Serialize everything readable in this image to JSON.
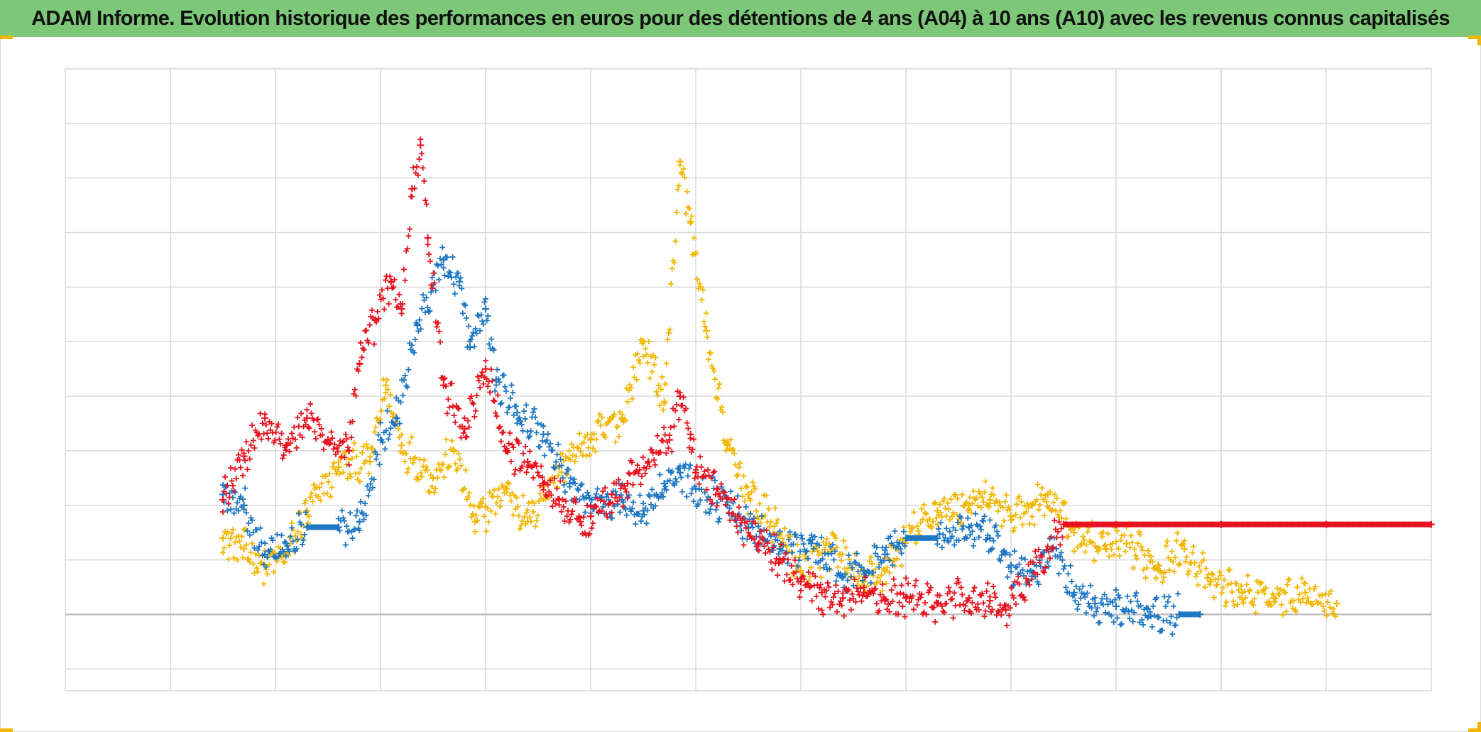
{
  "title": "ADAM Informe. Evolution historique des performances en euros pour des détentions de 4 ans (A04) à 10 ans (A10) avec les revenus connus capitalisés",
  "colors": {
    "title_bg": "#7dc878",
    "corner_marks": "#f2b705",
    "grid": "#d9d9d9",
    "zero_line": "#bfbfbf"
  },
  "chart_data": {
    "type": "scatter",
    "marker": "plus",
    "title": "ADAM Informe. Evolution historique des performances en euros pour des détentions de 4 ans (A04) à 10 ans (A10) avec les revenus connus capitalisés",
    "xlabel": "",
    "ylabel": "",
    "tick_labels_visible": false,
    "grid": true,
    "gridlines": {
      "x_count": 13,
      "y_count": 11
    },
    "xlim": [
      0,
      13
    ],
    "ylim": [
      -1.4,
      10
    ],
    "zero_line_y": 0,
    "legend": "none",
    "series": [
      {
        "color": "#f2b705",
        "points": [
          [
            1.5,
            1.4
          ],
          [
            1.7,
            1.2
          ],
          [
            1.9,
            0.9
          ],
          [
            2.1,
            1.1
          ],
          [
            2.3,
            1.9
          ],
          [
            2.6,
            2.7
          ],
          [
            2.9,
            2.8
          ],
          [
            3.05,
            4.2
          ],
          [
            3.2,
            3.1
          ],
          [
            3.5,
            2.5
          ],
          [
            3.7,
            3.0
          ],
          [
            3.9,
            1.7
          ],
          [
            4.2,
            2.3
          ],
          [
            4.4,
            1.7
          ],
          [
            4.7,
            2.7
          ],
          [
            5.0,
            3.2
          ],
          [
            5.3,
            3.6
          ],
          [
            5.5,
            5.0
          ],
          [
            5.7,
            3.9
          ],
          [
            5.85,
            8.3
          ],
          [
            5.95,
            7.2
          ],
          [
            6.1,
            5.2
          ],
          [
            6.3,
            3.1
          ],
          [
            6.5,
            2.2
          ],
          [
            6.8,
            1.5
          ],
          [
            7.0,
            0.8
          ],
          [
            7.3,
            1.2
          ],
          [
            7.6,
            0.6
          ],
          [
            7.8,
            0.8
          ],
          [
            8.0,
            1.4
          ],
          [
            8.3,
            1.9
          ],
          [
            8.6,
            2.0
          ],
          [
            8.8,
            2.1
          ],
          [
            9.0,
            1.8
          ],
          [
            9.2,
            2.0
          ],
          [
            9.35,
            2.2
          ],
          [
            9.6,
            1.5
          ],
          [
            9.9,
            1.2
          ],
          [
            10.1,
            1.3
          ],
          [
            10.4,
            0.9
          ],
          [
            10.65,
            1.2
          ],
          [
            10.9,
            0.6
          ],
          [
            11.2,
            0.4
          ],
          [
            11.5,
            0.3
          ],
          [
            11.8,
            0.4
          ],
          [
            12.1,
            0.2
          ]
        ]
      },
      {
        "color": "#1f77c4",
        "points": [
          [
            1.5,
            2.2
          ],
          [
            1.7,
            2.0
          ],
          [
            1.9,
            1.1
          ],
          [
            2.1,
            1.3
          ],
          [
            2.3,
            1.6
          ],
          [
            2.6,
            1.6
          ],
          [
            2.8,
            1.7
          ],
          [
            3.0,
            3.2
          ],
          [
            3.15,
            3.6
          ],
          [
            3.35,
            5.3
          ],
          [
            3.6,
            6.5
          ],
          [
            3.75,
            6.1
          ],
          [
            3.85,
            4.9
          ],
          [
            4.0,
            5.6
          ],
          [
            4.1,
            4.3
          ],
          [
            4.3,
            3.7
          ],
          [
            4.55,
            3.3
          ],
          [
            4.8,
            2.4
          ],
          [
            5.0,
            2.0
          ],
          [
            5.3,
            2.1
          ],
          [
            5.5,
            1.9
          ],
          [
            5.7,
            2.4
          ],
          [
            5.85,
            2.6
          ],
          [
            6.0,
            2.3
          ],
          [
            6.3,
            2.0
          ],
          [
            6.5,
            1.6
          ],
          [
            6.8,
            1.2
          ],
          [
            7.1,
            1.3
          ],
          [
            7.4,
            0.7
          ],
          [
            7.6,
            0.8
          ],
          [
            7.8,
            1.1
          ],
          [
            8.0,
            1.4
          ],
          [
            8.3,
            1.4
          ],
          [
            8.6,
            1.6
          ],
          [
            8.8,
            1.4
          ],
          [
            9.0,
            0.9
          ],
          [
            9.2,
            0.7
          ],
          [
            9.4,
            1.2
          ],
          [
            9.6,
            0.4
          ],
          [
            9.8,
            0.2
          ],
          [
            10.0,
            0.15
          ],
          [
            10.3,
            0.1
          ],
          [
            10.6,
            0.0
          ],
          [
            10.8,
            0.0
          ]
        ]
      },
      {
        "color": "#e8131f",
        "points": [
          [
            1.5,
            2.1
          ],
          [
            1.7,
            2.9
          ],
          [
            1.9,
            3.6
          ],
          [
            2.1,
            3.1
          ],
          [
            2.3,
            3.6
          ],
          [
            2.5,
            3.2
          ],
          [
            2.7,
            3.0
          ],
          [
            2.8,
            4.6
          ],
          [
            2.95,
            5.4
          ],
          [
            3.1,
            6.1
          ],
          [
            3.2,
            5.6
          ],
          [
            3.3,
            7.8
          ],
          [
            3.38,
            8.6
          ],
          [
            3.45,
            6.9
          ],
          [
            3.6,
            4.2
          ],
          [
            3.8,
            3.4
          ],
          [
            4.0,
            4.5
          ],
          [
            4.2,
            3.0
          ],
          [
            4.4,
            2.8
          ],
          [
            4.55,
            2.4
          ],
          [
            4.7,
            2.1
          ],
          [
            4.9,
            1.7
          ],
          [
            5.0,
            1.8
          ],
          [
            5.2,
            2.2
          ],
          [
            5.35,
            2.4
          ],
          [
            5.55,
            2.8
          ],
          [
            5.75,
            3.2
          ],
          [
            5.85,
            4.0
          ],
          [
            5.95,
            3.3
          ],
          [
            6.0,
            2.6
          ],
          [
            6.2,
            2.3
          ],
          [
            6.4,
            1.8
          ],
          [
            6.6,
            1.3
          ],
          [
            6.8,
            1.0
          ],
          [
            7.0,
            0.6
          ],
          [
            7.2,
            0.4
          ],
          [
            7.4,
            0.3
          ],
          [
            7.6,
            0.4
          ],
          [
            7.8,
            0.25
          ],
          [
            8.0,
            0.3
          ],
          [
            8.3,
            0.2
          ],
          [
            8.6,
            0.3
          ],
          [
            8.8,
            0.25
          ],
          [
            8.95,
            0.08
          ],
          [
            9.5,
            1.65
          ],
          [
            10.0,
            1.65
          ],
          [
            11.0,
            1.65
          ],
          [
            12.0,
            1.65
          ],
          [
            13.0,
            1.65
          ]
        ]
      }
    ]
  }
}
